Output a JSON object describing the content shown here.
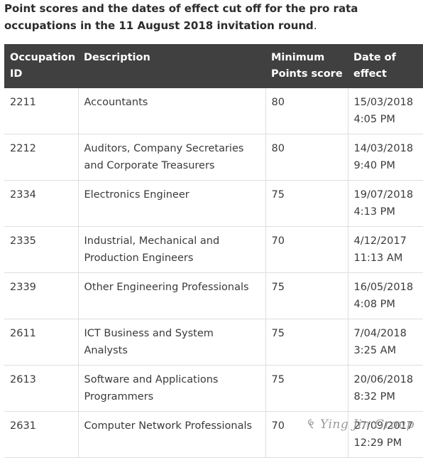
{
  "intro": {
    "text": "Point scores and the dates of effect cut off for the pro rata occupations in the 11 August 2018 invitation round",
    "period": "."
  },
  "table": {
    "headers": [
      "Occupation ID",
      "Description",
      "Minimum Points score",
      "Date of effect"
    ],
    "rows": [
      {
        "id": "2211",
        "description": "Accountants",
        "points": "80",
        "date": "15/03/2018 4:05 PM"
      },
      {
        "id": "2212",
        "description": "Auditors, Company Secretaries and Corporate Treasurers",
        "points": "80",
        "date": "14/03/2018 9:40 PM"
      },
      {
        "id": "2334",
        "description": "Electronics Engineer",
        "points": "75",
        "date": "19/07/2018 4:13 PM"
      },
      {
        "id": "2335",
        "description": "Industrial, Mechanical and Production Engineers",
        "points": "70",
        "date": "4/12/2017 11:13 AM"
      },
      {
        "id": "2339",
        "description": "Other Engineering Professionals",
        "points": "75",
        "date": "16/05/2018 4:08 PM"
      },
      {
        "id": "2611",
        "description": "ICT Business and System Analysts",
        "points": "75",
        "date": "7/04/2018 3:25 AM"
      },
      {
        "id": "2613",
        "description": "Software and Applications Programmers",
        "points": "75",
        "date": "20/06/2018 8:32 PM"
      },
      {
        "id": "2631",
        "description": "Computer Network Professionals",
        "points": "70",
        "date": "27/09/2017 12:29 PM"
      }
    ]
  },
  "watermark": {
    "text": "Ying Jin Group",
    "icon": "swirl-logo-icon"
  }
}
